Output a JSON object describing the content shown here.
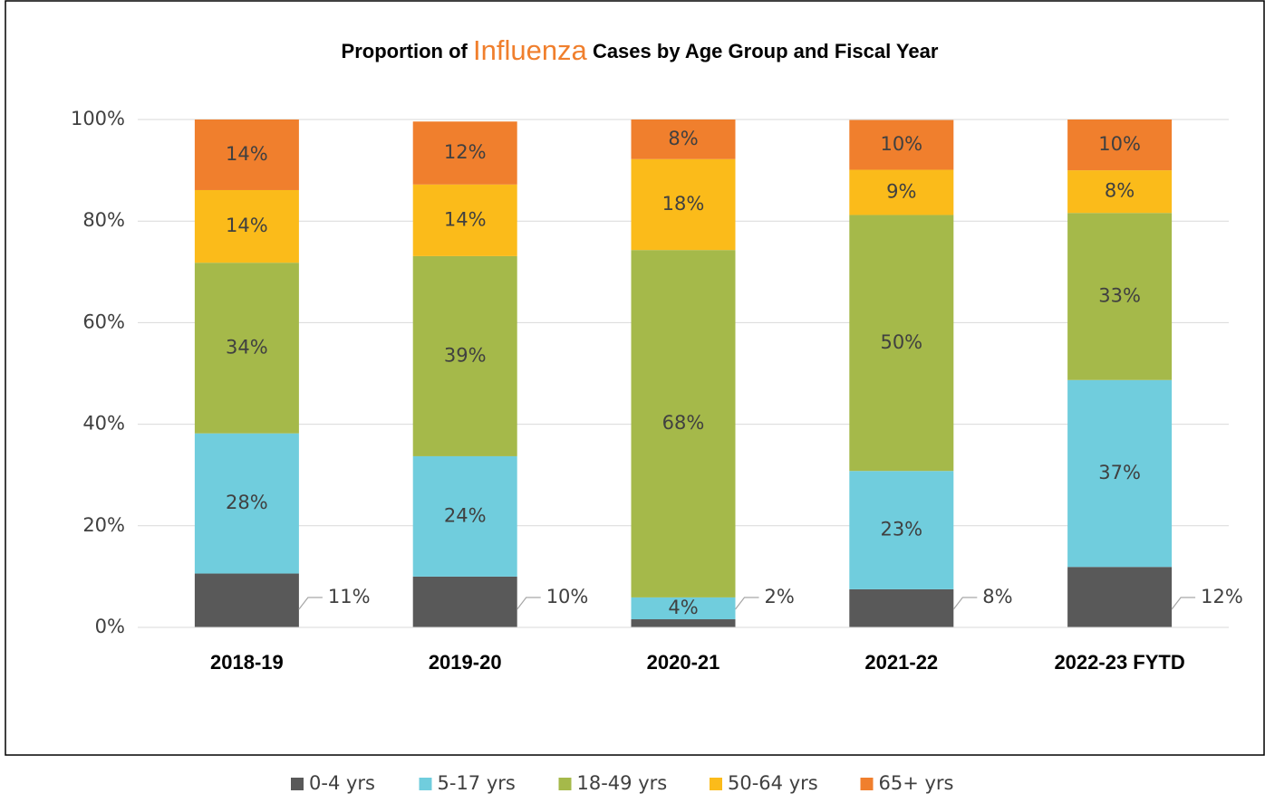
{
  "chart_data": {
    "type": "stacked_bar",
    "title": [
      "Proportion of",
      "Influenza",
      "Cases by Age Group and Fiscal Year"
    ],
    "categories": [
      "2018-19",
      "2019-20",
      "2020-21",
      "2021-22",
      "2022-23 FYTD"
    ],
    "series": [
      {
        "name": "0-4 yrs",
        "color": "#595959",
        "values": [
          10.6,
          10.0,
          1.6,
          7.5,
          11.9
        ],
        "value_labels": [
          "11%",
          "10%",
          "2%",
          "8%",
          "12%"
        ]
      },
      {
        "name": "5-17 yrs",
        "color": "#70cddd",
        "values": [
          27.6,
          23.7,
          4.3,
          23.3,
          36.8
        ],
        "value_labels": [
          "28%",
          "24%",
          "4%",
          "23%",
          "37%"
        ]
      },
      {
        "name": "18-49 yrs",
        "color": "#a5b94a",
        "values": [
          33.6,
          39.4,
          68.4,
          50.4,
          32.9
        ],
        "value_labels": [
          "34%",
          "39%",
          "68%",
          "50%",
          "33%"
        ]
      },
      {
        "name": "50-64 yrs",
        "color": "#fbbb1a",
        "values": [
          14.3,
          14.1,
          17.9,
          8.9,
          8.4
        ],
        "value_labels": [
          "14%",
          "14%",
          "18%",
          "9%",
          "8%"
        ]
      },
      {
        "name": "65+ yrs",
        "color": "#f07f2d",
        "values": [
          13.9,
          12.4,
          7.8,
          9.8,
          10.0
        ],
        "value_labels": [
          "14%",
          "12%",
          "8%",
          "10%",
          "10%"
        ]
      }
    ],
    "ylim": [
      0,
      100
    ],
    "yticks": [
      {
        "value": 0,
        "label": "0%"
      },
      {
        "value": 20,
        "label": "20%"
      },
      {
        "value": 40,
        "label": "40%"
      },
      {
        "value": 60,
        "label": "60%"
      },
      {
        "value": 80,
        "label": "80%"
      },
      {
        "value": 100,
        "label": "100%"
      }
    ],
    "grid": true,
    "legend": "bottom"
  }
}
